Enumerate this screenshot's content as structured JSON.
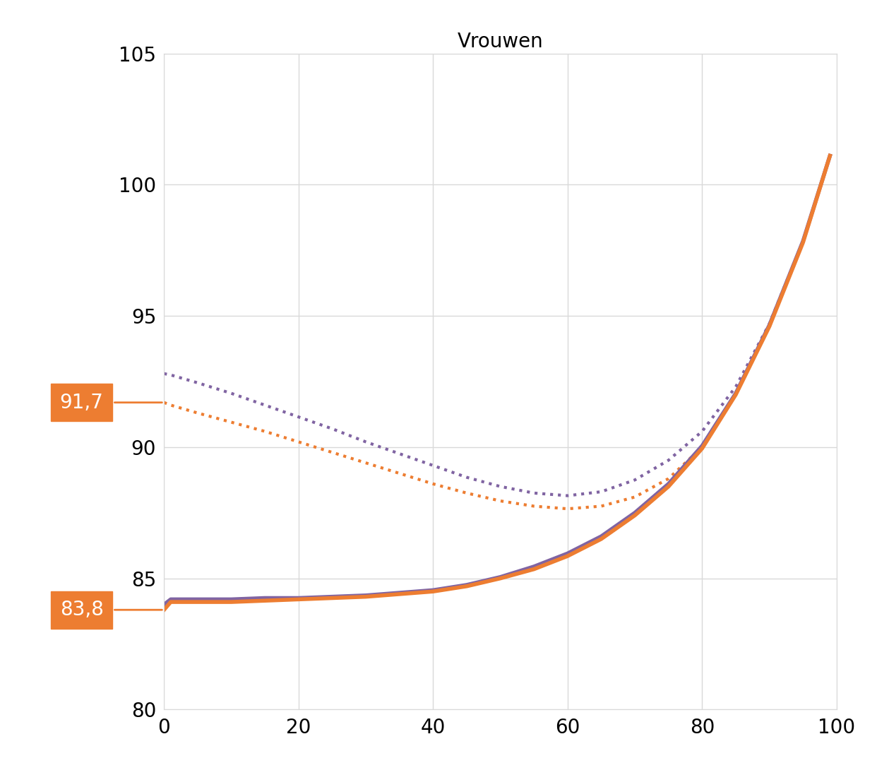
{
  "chart_data": {
    "type": "line",
    "title": "Vrouwen",
    "x": [
      0,
      1,
      5,
      10,
      15,
      20,
      25,
      30,
      35,
      40,
      45,
      50,
      55,
      60,
      65,
      70,
      75,
      80,
      85,
      90,
      95,
      99
    ],
    "series": [
      {
        "color": "#8064a2",
        "line_style": "dotted",
        "values": [
          92.8,
          92.75,
          92.45,
          92.05,
          91.6,
          91.15,
          90.7,
          90.2,
          89.75,
          89.3,
          88.85,
          88.5,
          88.25,
          88.15,
          88.3,
          88.75,
          89.5,
          90.6,
          92.3,
          94.7,
          97.85,
          101.1
        ]
      },
      {
        "color": "#ed7d31",
        "line_style": "dotted",
        "values": [
          91.7,
          91.6,
          91.3,
          90.95,
          90.6,
          90.2,
          89.8,
          89.4,
          89.0,
          88.6,
          88.25,
          87.95,
          87.75,
          87.65,
          87.75,
          88.1,
          88.8,
          90.0,
          92.0,
          94.6,
          97.8,
          101.1
        ]
      },
      {
        "color": "#8064a2",
        "line_style": "solid",
        "values": [
          84.0,
          84.2,
          84.2,
          84.2,
          84.25,
          84.25,
          84.3,
          84.35,
          84.45,
          84.55,
          84.75,
          85.05,
          85.45,
          85.95,
          86.6,
          87.5,
          88.6,
          90.05,
          92.05,
          94.65,
          97.85,
          101.1
        ]
      },
      {
        "color": "#ed7d31",
        "line_style": "solid",
        "values": [
          83.8,
          84.1,
          84.1,
          84.1,
          84.15,
          84.2,
          84.25,
          84.3,
          84.4,
          84.5,
          84.7,
          85.0,
          85.35,
          85.85,
          86.5,
          87.4,
          88.5,
          89.95,
          92.0,
          94.6,
          97.8,
          101.1
        ]
      }
    ],
    "annotations": [
      {
        "text": "91,7",
        "x": 0,
        "y": 91.7,
        "color": "#ed7d31"
      },
      {
        "text": "83,8",
        "x": 0,
        "y": 83.8,
        "color": "#ed7d31"
      }
    ],
    "xlim": [
      0,
      100
    ],
    "xticks": [
      0,
      20,
      40,
      60,
      80,
      100
    ],
    "ylim": [
      80,
      105
    ],
    "yticks": [
      80,
      85,
      90,
      95,
      100,
      105
    ],
    "grid": true
  }
}
